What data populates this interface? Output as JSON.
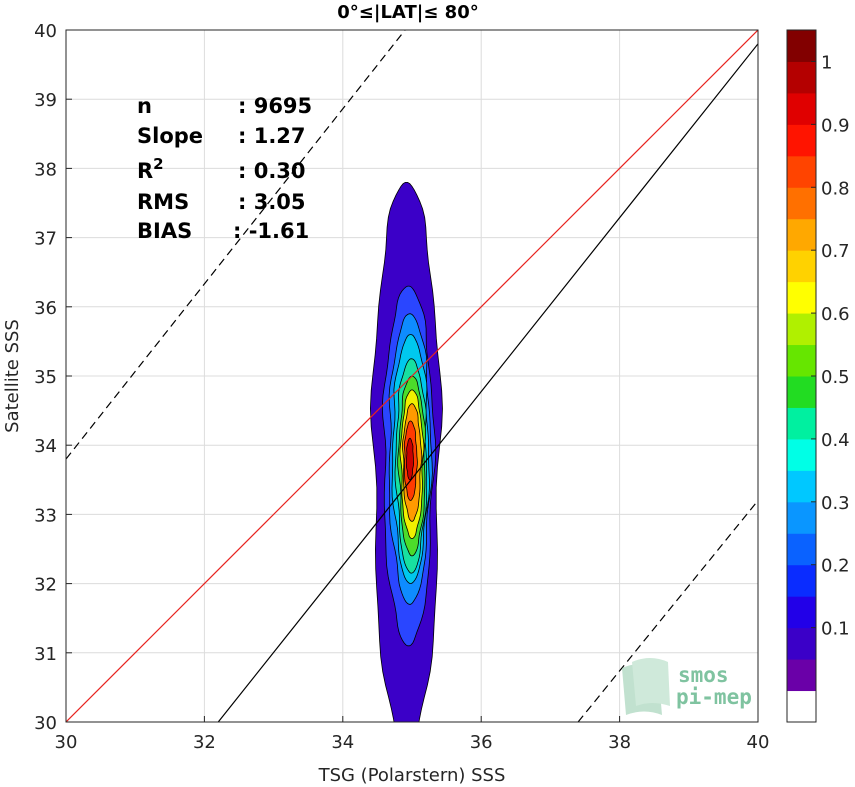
{
  "chart_data": {
    "type": "heatmap",
    "title": "0°≤|LAT|≤ 80°",
    "xlabel": "TSG (Polarstern) SSS",
    "ylabel": "Satellite SSS",
    "xlim": [
      30,
      40
    ],
    "ylim": [
      30,
      40
    ],
    "x_ticks": [
      "30",
      "32",
      "34",
      "36",
      "38",
      "40"
    ],
    "y_ticks": [
      "30",
      "31",
      "32",
      "33",
      "34",
      "35",
      "36",
      "37",
      "38",
      "39",
      "40"
    ],
    "grid": true,
    "stats": [
      {
        "label": "n",
        "value": ": 9695"
      },
      {
        "label": "Slope",
        "value": ": 1.27"
      },
      {
        "label": "R",
        "sup": "2",
        "value": ": 0.30"
      },
      {
        "label": "RMS",
        "value": ": 3.05"
      },
      {
        "label": "BIAS",
        "value": ": -1.61"
      }
    ],
    "lines": [
      {
        "name": "identity",
        "color": "#e8231f",
        "style": "solid",
        "x": [
          30,
          40
        ],
        "y": [
          30,
          40
        ]
      },
      {
        "name": "regression",
        "color": "#000000",
        "style": "solid",
        "x": [
          32.2,
          40
        ],
        "y": [
          30,
          39.8
        ]
      },
      {
        "name": "upper-bound",
        "color": "#000000",
        "style": "dashed",
        "x": [
          30,
          34.9
        ],
        "y": [
          33.8,
          40
        ]
      },
      {
        "name": "lower-bound",
        "color": "#000000",
        "style": "dashed",
        "x": [
          37.4,
          40
        ],
        "y": [
          30,
          33.2
        ]
      }
    ],
    "density_levels": [
      {
        "level": 0.05,
        "color": "#3b00c8",
        "cx": 34.92,
        "cy": 34.0,
        "rx": 0.48,
        "ry_top": 3.8,
        "ry_bottom": 4.4
      },
      {
        "level": 0.15,
        "color": "#2a46ff",
        "cx": 34.95,
        "cy": 33.9,
        "rx": 0.36,
        "ry_top": 2.4,
        "ry_bottom": 2.8
      },
      {
        "level": 0.25,
        "color": "#0e8cff",
        "cx": 34.97,
        "cy": 33.9,
        "rx": 0.3,
        "ry_top": 2.0,
        "ry_bottom": 2.2
      },
      {
        "level": 0.35,
        "color": "#00c8ee",
        "cx": 34.98,
        "cy": 33.9,
        "rx": 0.26,
        "ry_top": 1.7,
        "ry_bottom": 1.9
      },
      {
        "level": 0.45,
        "color": "#18e0a0",
        "cx": 34.99,
        "cy": 33.85,
        "rx": 0.22,
        "ry_top": 1.4,
        "ry_bottom": 1.7
      },
      {
        "level": 0.55,
        "color": "#4cdc2a",
        "cx": 35.0,
        "cy": 33.8,
        "rx": 0.19,
        "ry_top": 1.2,
        "ry_bottom": 1.4
      },
      {
        "level": 0.65,
        "color": "#f0f000",
        "cx": 35.0,
        "cy": 33.8,
        "rx": 0.16,
        "ry_top": 1.0,
        "ry_bottom": 1.15
      },
      {
        "level": 0.75,
        "color": "#ff9a00",
        "cx": 35.0,
        "cy": 33.8,
        "rx": 0.13,
        "ry_top": 0.8,
        "ry_bottom": 0.9
      },
      {
        "level": 0.85,
        "color": "#ff3a00",
        "cx": 34.98,
        "cy": 33.8,
        "rx": 0.09,
        "ry_top": 0.55,
        "ry_bottom": 0.6
      },
      {
        "level": 0.95,
        "color": "#c80000",
        "cx": 34.97,
        "cy": 33.8,
        "rx": 0.05,
        "ry_top": 0.3,
        "ry_bottom": 0.3
      }
    ],
    "colorbar": {
      "ticks": [
        "0.1",
        "0.2",
        "0.3",
        "0.4",
        "0.5",
        "0.6",
        "0.7",
        "0.8",
        "0.9",
        "1"
      ],
      "segments": [
        "#ffffff",
        "#6a00a8",
        "#3b00c8",
        "#2200e8",
        "#0a2cff",
        "#0a62ff",
        "#0a96ff",
        "#00c8ff",
        "#00ffe6",
        "#00f0a0",
        "#22dc22",
        "#66e600",
        "#b0f000",
        "#ffff00",
        "#ffd200",
        "#ffa800",
        "#ff7000",
        "#ff4400",
        "#ff1400",
        "#e00000",
        "#b40000",
        "#820000"
      ]
    },
    "logo": {
      "line1": "smos",
      "line2": "pi-mep"
    }
  }
}
